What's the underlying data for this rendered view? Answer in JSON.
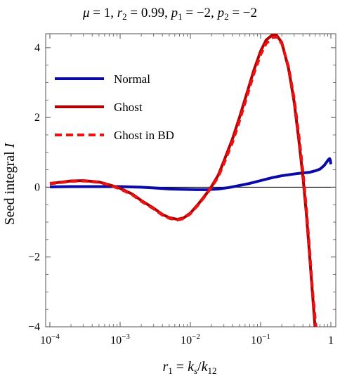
{
  "chart_data": {
    "type": "line",
    "title": "μ = 1, r₂ = 0.99, p₁ = −2, p₂ = −2",
    "title_parts": {
      "mu": "μ",
      "mu_val": " = 1, ",
      "r2": "r",
      "r2_sub": "2",
      "r2_val": " = 0.99, ",
      "p1": "p",
      "p1_sub": "1",
      "p1_val": " = −2, ",
      "p2": "p",
      "p2_sub": "2",
      "p2_val": " = −2"
    },
    "xlabel": "r₁ = kₛ/k₁₂",
    "xlabel_parts": {
      "r": "r",
      "r_sub": "1",
      "eq": " = ",
      "k1": "k",
      "k1_sub": "s",
      "slash": "/",
      "k2": "k",
      "k2_sub": "12"
    },
    "ylabel": "Seed integral I",
    "ylabel_parts": {
      "text": "Seed integral ",
      "sym": "I"
    },
    "x_scale": "log",
    "xlim": [
      0.0001,
      1
    ],
    "ylim": [
      -4,
      4.4
    ],
    "x_ticks": [
      {
        "value": 0.0001,
        "base": "10",
        "exp": "−4"
      },
      {
        "value": 0.001,
        "base": "10",
        "exp": "−3"
      },
      {
        "value": 0.01,
        "base": "10",
        "exp": "−2"
      },
      {
        "value": 0.1,
        "base": "10",
        "exp": "−1"
      },
      {
        "value": 1,
        "base": "1",
        "exp": ""
      }
    ],
    "y_ticks": [
      {
        "value": -4,
        "label": "−4"
      },
      {
        "value": -2,
        "label": "−2"
      },
      {
        "value": 0,
        "label": "0"
      },
      {
        "value": 2,
        "label": "2"
      },
      {
        "value": 4,
        "label": "4"
      }
    ],
    "grid": false,
    "zero_line": true,
    "legend_position": "top-left",
    "series": [
      {
        "name": "Normal",
        "color": "#0a0aa8",
        "style": "solid",
        "points": [
          [
            0.0001,
            0.01
          ],
          [
            0.0002,
            0.02
          ],
          [
            0.0005,
            0.02
          ],
          [
            0.001,
            0.02
          ],
          [
            0.002,
            0.0
          ],
          [
            0.003,
            -0.02
          ],
          [
            0.005,
            -0.05
          ],
          [
            0.008,
            -0.06
          ],
          [
            0.012,
            -0.07
          ],
          [
            0.017,
            -0.07
          ],
          [
            0.025,
            -0.05
          ],
          [
            0.035,
            -0.01
          ],
          [
            0.05,
            0.05
          ],
          [
            0.07,
            0.11
          ],
          [
            0.1,
            0.19
          ],
          [
            0.15,
            0.28
          ],
          [
            0.2,
            0.33
          ],
          [
            0.3,
            0.38
          ],
          [
            0.4,
            0.41
          ],
          [
            0.5,
            0.43
          ],
          [
            0.6,
            0.47
          ],
          [
            0.7,
            0.52
          ],
          [
            0.8,
            0.62
          ],
          [
            0.87,
            0.72
          ],
          [
            0.92,
            0.79
          ],
          [
            0.96,
            0.82
          ],
          [
            0.98,
            0.78
          ],
          [
            1.0,
            0.66
          ]
        ]
      },
      {
        "name": "Ghost",
        "color": "#b40000",
        "style": "solid",
        "points": [
          [
            0.0001,
            0.11
          ],
          [
            0.00015,
            0.15
          ],
          [
            0.0002,
            0.18
          ],
          [
            0.0003,
            0.19
          ],
          [
            0.0005,
            0.15
          ],
          [
            0.0007,
            0.07
          ],
          [
            0.001,
            -0.03
          ],
          [
            0.0015,
            -0.2
          ],
          [
            0.002,
            -0.38
          ],
          [
            0.003,
            -0.6
          ],
          [
            0.004,
            -0.78
          ],
          [
            0.005,
            -0.87
          ],
          [
            0.0065,
            -0.92
          ],
          [
            0.008,
            -0.88
          ],
          [
            0.01,
            -0.74
          ],
          [
            0.013,
            -0.48
          ],
          [
            0.017,
            -0.18
          ],
          [
            0.02,
            0.02
          ],
          [
            0.025,
            0.35
          ],
          [
            0.03,
            0.75
          ],
          [
            0.04,
            1.4
          ],
          [
            0.05,
            2.0
          ],
          [
            0.065,
            2.75
          ],
          [
            0.08,
            3.35
          ],
          [
            0.1,
            3.9
          ],
          [
            0.12,
            4.22
          ],
          [
            0.15,
            4.38
          ],
          [
            0.17,
            4.35
          ],
          [
            0.2,
            4.15
          ],
          [
            0.25,
            3.4
          ],
          [
            0.3,
            2.45
          ],
          [
            0.35,
            1.35
          ],
          [
            0.4,
            0.3
          ],
          [
            0.45,
            -0.8
          ],
          [
            0.5,
            -2.0
          ],
          [
            0.55,
            -3.1
          ],
          [
            0.6,
            -4.1
          ]
        ]
      },
      {
        "name": "Ghost in BD",
        "color": "#ee1111",
        "style": "dashed",
        "points": [
          [
            0.0001,
            0.1
          ],
          [
            0.00015,
            0.14
          ],
          [
            0.0002,
            0.17
          ],
          [
            0.0003,
            0.18
          ],
          [
            0.0005,
            0.14
          ],
          [
            0.0007,
            0.06
          ],
          [
            0.001,
            -0.05
          ],
          [
            0.0015,
            -0.22
          ],
          [
            0.002,
            -0.4
          ],
          [
            0.003,
            -0.62
          ],
          [
            0.004,
            -0.8
          ],
          [
            0.005,
            -0.89
          ],
          [
            0.0065,
            -0.94
          ],
          [
            0.008,
            -0.9
          ],
          [
            0.01,
            -0.76
          ],
          [
            0.013,
            -0.5
          ],
          [
            0.017,
            -0.2
          ],
          [
            0.02,
            0.0
          ],
          [
            0.025,
            0.3
          ],
          [
            0.03,
            0.68
          ],
          [
            0.04,
            1.3
          ],
          [
            0.05,
            1.9
          ],
          [
            0.065,
            2.65
          ],
          [
            0.08,
            3.25
          ],
          [
            0.1,
            3.8
          ],
          [
            0.12,
            4.12
          ],
          [
            0.15,
            4.3
          ],
          [
            0.17,
            4.3
          ],
          [
            0.2,
            4.12
          ],
          [
            0.25,
            3.45
          ],
          [
            0.3,
            2.55
          ],
          [
            0.35,
            1.5
          ],
          [
            0.4,
            0.45
          ],
          [
            0.45,
            -0.65
          ],
          [
            0.5,
            -1.85
          ],
          [
            0.55,
            -3.0
          ],
          [
            0.62,
            -4.1
          ]
        ]
      }
    ]
  }
}
